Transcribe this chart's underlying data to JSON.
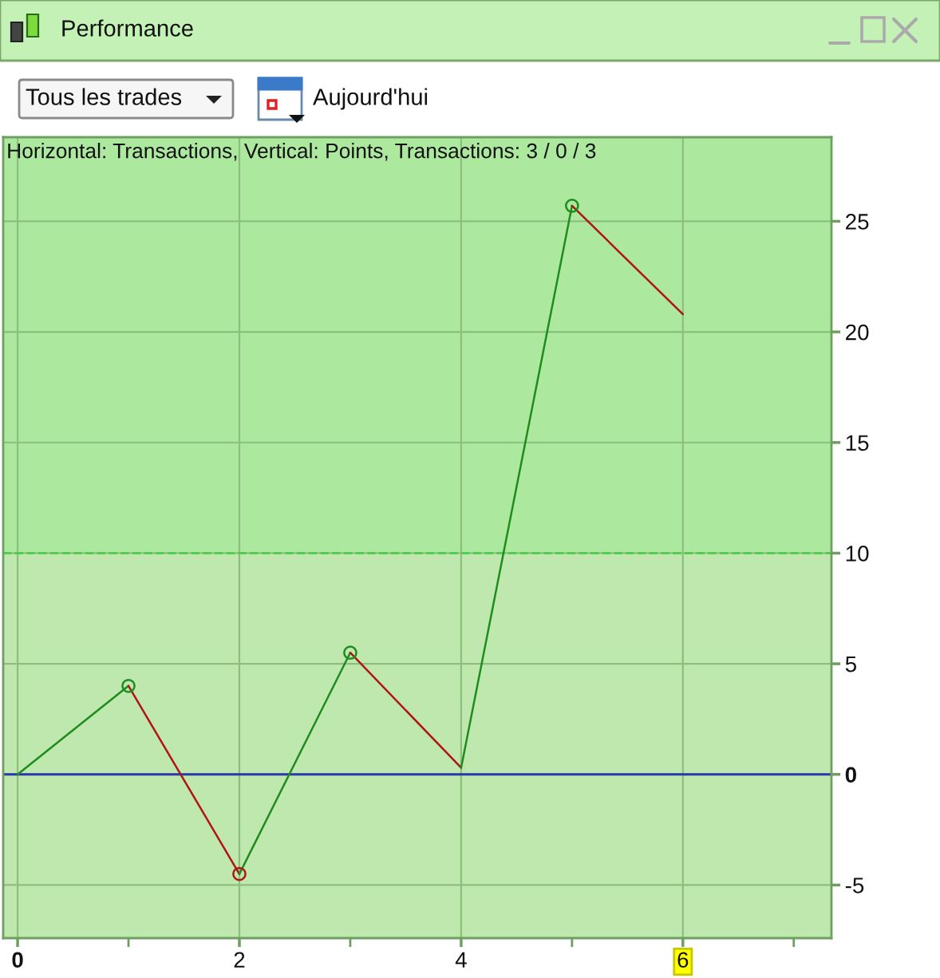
{
  "chart_data": {
    "type": "line",
    "title": "Performance",
    "subtitle": "Horizontal: Transactions, Vertical: Points, Transactions: 3 / 0 / 3",
    "annotations": [
      "Tous les trades",
      "Aujourd'hui"
    ],
    "series": [
      {
        "x": [
          0,
          1
        ],
        "values": [
          0,
          4
        ],
        "color": "#1e8c1e"
      },
      {
        "x": [
          1,
          2
        ],
        "values": [
          4,
          -4.5
        ],
        "color": "#b01414"
      },
      {
        "x": [
          2,
          3
        ],
        "values": [
          -4.5,
          5.5
        ],
        "color": "#1e8c1e"
      },
      {
        "x": [
          3,
          4
        ],
        "values": [
          5.5,
          0.3
        ],
        "color": "#b01414"
      },
      {
        "x": [
          4,
          5
        ],
        "values": [
          0.3,
          25.7
        ],
        "color": "#1e8c1e"
      },
      {
        "x": [
          5,
          6
        ],
        "values": [
          25.7,
          20.8
        ],
        "color": "#b01414"
      },
      {
        "type": "scatter",
        "x": [
          1,
          2,
          3,
          5
        ],
        "values": [
          4,
          -4.5,
          5.5,
          25.7
        ],
        "colors": [
          "#1e8c1e",
          "#b01414",
          "#1e8c1e",
          "#1e8c1e"
        ],
        "marker": "circle"
      }
    ],
    "xlim": [
      -0.13,
      7.34
    ],
    "xticks": [
      0,
      {
        "value": 1,
        "label": null
      },
      2,
      {
        "value": 3,
        "label": null
      },
      4,
      {
        "value": 5,
        "label": null
      },
      6,
      {
        "value": 7,
        "label": null
      }
    ],
    "ylim": [
      -7.4,
      28.8
    ],
    "yticks": [
      -5,
      0,
      5,
      10,
      15,
      20,
      25
    ],
    "grid": true,
    "ref_lines": [
      {
        "axis": "y",
        "value": 10,
        "color": "#4ccc4c",
        "line_style": "dashed"
      },
      {
        "axis": "y",
        "value": 0,
        "color": "#2a36b0",
        "line_style": "solid"
      }
    ],
    "bands": [
      {
        "axis": "y",
        "from": 10,
        "to": 28.8,
        "color": "#ace99f"
      },
      {
        "axis": "y",
        "from": -7.4,
        "to": 10,
        "color": "#bfe8ae"
      }
    ]
  }
}
